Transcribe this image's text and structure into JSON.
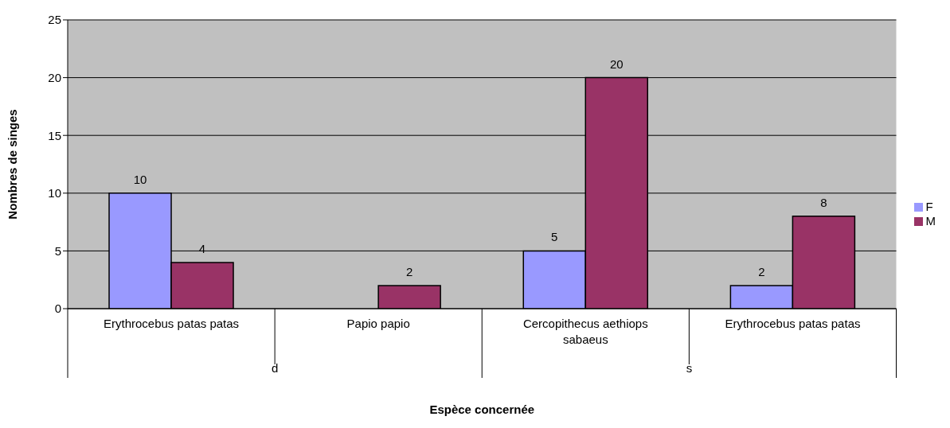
{
  "chart_data": {
    "type": "bar",
    "xlabel": "Espèce concernée",
    "ylabel": "Nombres de singes",
    "categories": [
      "Erythrocebus patas patas",
      "Papio papio",
      "Cercopithecus aethiops sabaeus",
      "Erythrocebus patas patas"
    ],
    "series": [
      {
        "name": "F",
        "color": "#9999ff",
        "values": [
          10,
          null,
          5,
          2
        ]
      },
      {
        "name": "M",
        "color": "#993366",
        "values": [
          4,
          2,
          20,
          8
        ]
      }
    ],
    "ylim": [
      0,
      25
    ],
    "yticks": [
      0,
      5,
      10,
      15,
      20,
      25
    ],
    "grid": "y",
    "legend": "right",
    "data_labels": true,
    "annotations": [
      "d",
      "s"
    ]
  }
}
